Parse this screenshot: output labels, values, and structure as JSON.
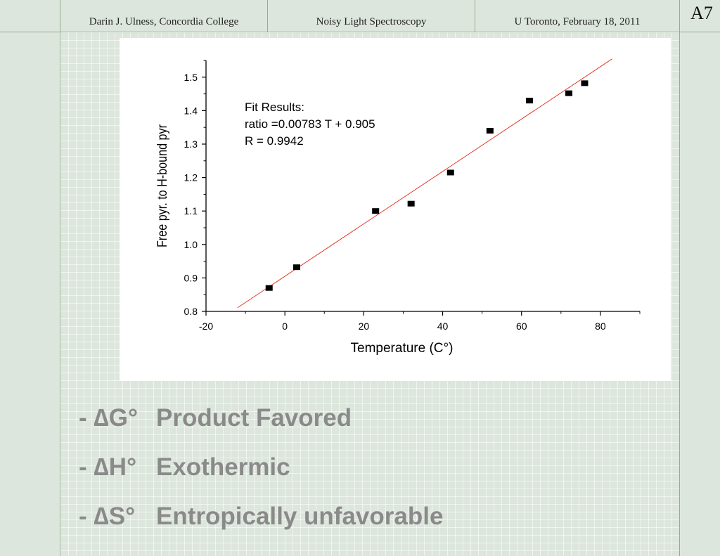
{
  "header": {
    "author": "Darin J. Ulness, Concordia College",
    "title": "Noisy Light Spectroscopy",
    "venue": "U Toronto, February 18, 2011",
    "slide_number": "A7"
  },
  "chart_data": {
    "type": "scatter",
    "xlabel": "Temperature (C°)",
    "ylabel": "Free pyr. to H-bound pyr",
    "xlim": [
      -20,
      90
    ],
    "ylim": [
      0.8,
      1.55
    ],
    "x_ticks": [
      -20,
      0,
      20,
      40,
      60,
      80
    ],
    "y_ticks": [
      0.8,
      0.9,
      1.0,
      1.1,
      1.2,
      1.3,
      1.4,
      1.5
    ],
    "x_tick_labels": [
      "-20",
      "0",
      "20",
      "40",
      "60",
      "80"
    ],
    "y_tick_labels": [
      "0.8",
      "0.9",
      "1.0",
      "1.1",
      "1.2",
      "1.3",
      "1.4",
      "1.5"
    ],
    "series": [
      {
        "x": [
          -4,
          3,
          23,
          32,
          42,
          52,
          62,
          72,
          76
        ],
        "y": [
          0.87,
          0.932,
          1.1,
          1.122,
          1.215,
          1.34,
          1.43,
          1.452,
          1.482
        ]
      }
    ],
    "fit_line": {
      "slope": 0.00783,
      "intercept": 0.905,
      "x_range": [
        -12,
        83
      ],
      "color": "#e03a2a"
    },
    "annotation": [
      "Fit Results:",
      "ratio =0.00783 T + 0.905",
      "R = 0.9942"
    ],
    "grid": false,
    "marker_color": "#000000"
  },
  "bullets": [
    {
      "symbol": "- ∆G°",
      "text": "Product Favored"
    },
    {
      "symbol": "- ∆H°",
      "text": "Exothermic"
    },
    {
      "symbol": "- ∆S°",
      "text": "Entropically unfavorable"
    }
  ]
}
